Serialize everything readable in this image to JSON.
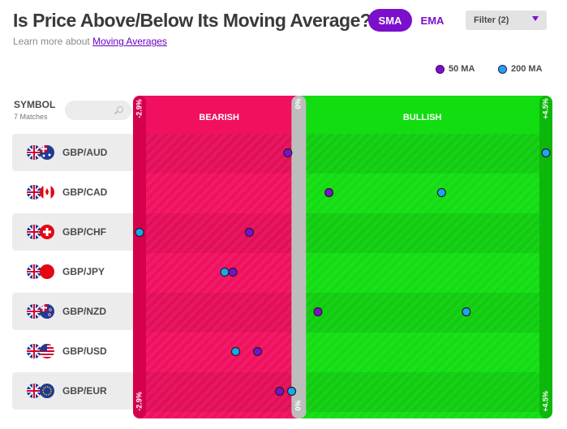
{
  "header": {
    "title": "Is Price Above/Below Its Moving Average?",
    "learn_prefix": "Learn more about",
    "learn_link": "Moving Averages",
    "sma_label": "SMA",
    "ema_label": "EMA",
    "filter_label": "Filter (2)"
  },
  "legend": {
    "ma50_label": "50 MA",
    "ma200_label": "200 MA"
  },
  "symbols": {
    "header": "SYMBOL",
    "matches": "7 Matches"
  },
  "colors": {
    "bearish": "#f0105f",
    "bearish_edge": "#d60a54",
    "bullish": "#11dd11",
    "bullish_edge": "#0fc20f",
    "zero_line": "#bdbdbd",
    "ma50": "#7b0fcc",
    "ma200": "#1aa7ee",
    "accent": "#7b0fcc"
  },
  "chart_data": {
    "type": "scatter",
    "xlim": [
      -2.9,
      4.5
    ],
    "min_label": "-2.9%",
    "zero_label": "0%",
    "max_label": "+4.5%",
    "bearish_label": "BEARISH",
    "bullish_label": "BULLISH",
    "categories": [
      "GBP/AUD",
      "GBP/CAD",
      "GBP/CHF",
      "GBP/JPY",
      "GBP/NZD",
      "GBP/USD",
      "GBP/EUR"
    ],
    "series": [
      {
        "name": "50 MA",
        "values": [
          -0.2,
          0.55,
          -0.9,
          -1.2,
          0.35,
          -0.75,
          -0.35
        ]
      },
      {
        "name": "200 MA",
        "values": [
          4.5,
          2.6,
          -2.9,
          -1.35,
          3.05,
          -1.15,
          -0.13
        ]
      }
    ]
  },
  "pairs": [
    {
      "label": "GBP/AUD",
      "flag": "aud-flag-icon"
    },
    {
      "label": "GBP/CAD",
      "flag": "cad-flag-icon"
    },
    {
      "label": "GBP/CHF",
      "flag": "chf-flag-icon"
    },
    {
      "label": "GBP/JPY",
      "flag": "jpy-flag-icon"
    },
    {
      "label": "GBP/NZD",
      "flag": "nzd-flag-icon"
    },
    {
      "label": "GBP/USD",
      "flag": "usd-flag-icon"
    },
    {
      "label": "GBP/EUR",
      "flag": "eur-flag-icon"
    }
  ]
}
